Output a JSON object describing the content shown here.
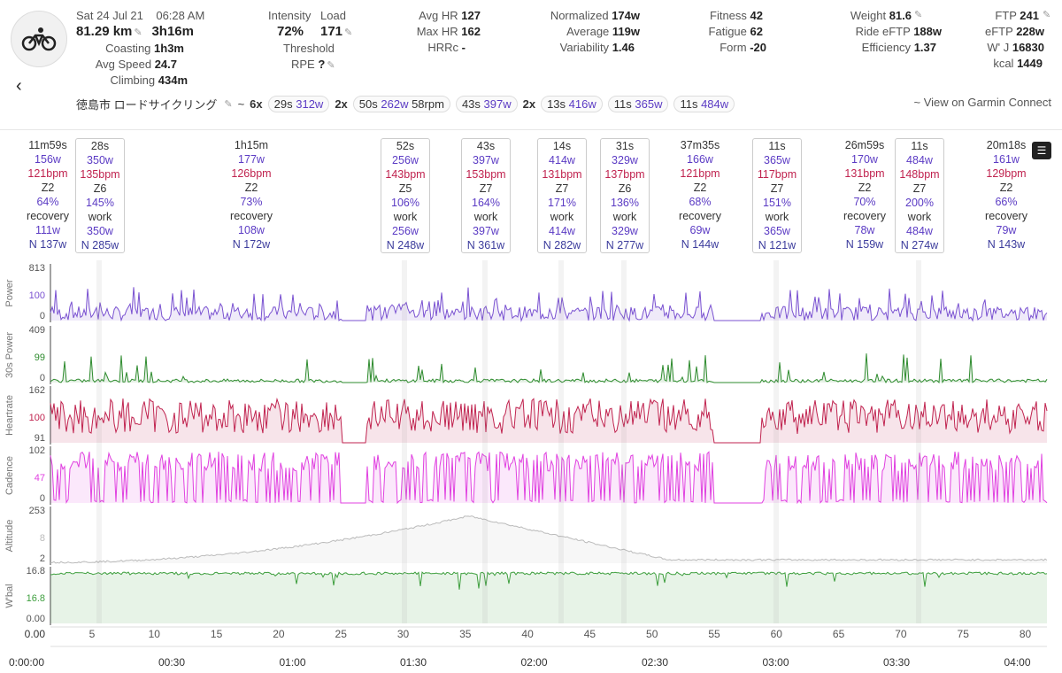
{
  "activity": {
    "date": "Sat 24 Jul 21",
    "time": "06:28 AM",
    "distance": "81.29 km",
    "duration": "3h16m",
    "coasting_label": "Coasting",
    "coasting": "1h3m",
    "avg_speed_label": "Avg Speed",
    "avg_speed": "24.7",
    "climbing_label": "Climbing",
    "climbing": "434m",
    "name": "徳島市 ロードサイクリング",
    "garmin_link": "~ View on Garmin Connect"
  },
  "stats": {
    "intensity_label": "Intensity",
    "intensity": "72%",
    "load_label": "Load",
    "load": "171",
    "threshold_label": "Threshold",
    "rpe_label": "RPE",
    "rpe": "?",
    "avg_hr_label": "Avg HR",
    "avg_hr": "127",
    "max_hr_label": "Max HR",
    "max_hr": "162",
    "hrrc_label": "HRRc",
    "hrrc": "-",
    "normalized_label": "Normalized",
    "normalized": "174w",
    "average_label": "Average",
    "average": "119w",
    "variability_label": "Variability",
    "variability": "1.46",
    "fitness_label": "Fitness",
    "fitness": "42",
    "fatigue_label": "Fatigue",
    "fatigue": "62",
    "form_label": "Form",
    "form": "-20",
    "weight_label": "Weight",
    "weight": "81.6",
    "ride_eftp_label": "Ride eFTP",
    "ride_eftp": "188w",
    "efficiency_label": "Efficiency",
    "efficiency": "1.37",
    "ftp_label": "FTP",
    "ftp": "241",
    "eftp_label": "eFTP",
    "eftp": "228w",
    "wj_label": "W' J",
    "wj": "16830",
    "kcal_label": "kcal",
    "kcal": "1449"
  },
  "segments": {
    "tilde": "~",
    "s1_mult": "6x",
    "s1_time": "29s",
    "s1_w": "312w",
    "s2_mult": "2x",
    "s2_time": "50s",
    "s2_w": "262w",
    "s2_rpm": "58rpm",
    "s3_time": "43s",
    "s3_w": "397w",
    "s4_mult": "2x",
    "s4_time": "13s",
    "s4_w": "416w",
    "s5_time": "11s",
    "s5_w": "365w",
    "s6_time": "11s",
    "s6_w": "484w"
  },
  "intervals": [
    {
      "dur": "11m59s",
      "w": "156w",
      "hr": "121bpm",
      "zone": "Z2",
      "pct": "64%",
      "type": "recovery",
      "avg": "111w",
      "np": "N 137w"
    },
    {
      "dur": "28s",
      "w": "350w",
      "hr": "135bpm",
      "zone": "Z6",
      "pct": "145%",
      "type": "work",
      "avg": "350w",
      "np": "N 285w"
    },
    {
      "dur": "1h15m",
      "w": "177w",
      "hr": "126bpm",
      "zone": "Z2",
      "pct": "73%",
      "type": "recovery",
      "avg": "108w",
      "np": "N 172w"
    },
    {
      "dur": "52s",
      "w": "256w",
      "hr": "143bpm",
      "zone": "Z5",
      "pct": "106%",
      "type": "work",
      "avg": "256w",
      "np": "N 248w"
    },
    {
      "dur": "43s",
      "w": "397w",
      "hr": "153bpm",
      "zone": "Z7",
      "pct": "164%",
      "type": "work",
      "avg": "397w",
      "np": "N 361w"
    },
    {
      "dur": "14s",
      "w": "414w",
      "hr": "131bpm",
      "zone": "Z7",
      "pct": "171%",
      "type": "work",
      "avg": "414w",
      "np": "N 282w"
    },
    {
      "dur": "31s",
      "w": "329w",
      "hr": "137bpm",
      "zone": "Z6",
      "pct": "136%",
      "type": "work",
      "avg": "329w",
      "np": "N 277w"
    },
    {
      "dur": "37m35s",
      "w": "166w",
      "hr": "121bpm",
      "zone": "Z2",
      "pct": "68%",
      "type": "recovery",
      "avg": "69w",
      "np": "N 144w"
    },
    {
      "dur": "11s",
      "w": "365w",
      "hr": "117bpm",
      "zone": "Z7",
      "pct": "151%",
      "type": "work",
      "avg": "365w",
      "np": "N 121w"
    },
    {
      "dur": "26m59s",
      "w": "170w",
      "hr": "131bpm",
      "zone": "Z2",
      "pct": "70%",
      "type": "recovery",
      "avg": "78w",
      "np": "N 159w"
    },
    {
      "dur": "11s",
      "w": "484w",
      "hr": "148bpm",
      "zone": "Z7",
      "pct": "200%",
      "type": "work",
      "avg": "484w",
      "np": "N 274w"
    },
    {
      "dur": "20m18s",
      "w": "161w",
      "hr": "129bpm",
      "zone": "Z2",
      "pct": "66%",
      "type": "recovery",
      "avg": "79w",
      "np": "N 143w"
    }
  ],
  "charts": {
    "power": {
      "label": "Power",
      "ticks": [
        "813",
        "100",
        "0"
      ],
      "color": "#7a52d1"
    },
    "power30": {
      "label": "30s Power",
      "ticks": [
        "409",
        "99",
        "0"
      ],
      "color": "#2e8b2e"
    },
    "heartrate": {
      "label": "Heartrate",
      "ticks": [
        "162",
        "100",
        "91"
      ],
      "color": "#c0234f"
    },
    "cadence": {
      "label": "Cadence",
      "ticks": [
        "102",
        "47",
        "0"
      ],
      "color": "#e040e0"
    },
    "altitude": {
      "label": "Altitude",
      "ticks": [
        "253",
        "8",
        "2"
      ],
      "color": "#bbbbbb"
    },
    "wbal": {
      "label": "W'bal",
      "ticks": [
        "16.8",
        "16.8",
        "0.00"
      ],
      "color": "#3d9e3d"
    }
  },
  "distance_axis": [
    "5",
    "10",
    "15",
    "20",
    "25",
    "30",
    "35",
    "40",
    "45",
    "50",
    "55",
    "60",
    "65",
    "70",
    "75",
    "80"
  ],
  "time_axis": [
    "0:00:00",
    "00:30",
    "01:00",
    "01:30",
    "02:00",
    "02:30",
    "03:00",
    "03:30",
    "04:00"
  ]
}
